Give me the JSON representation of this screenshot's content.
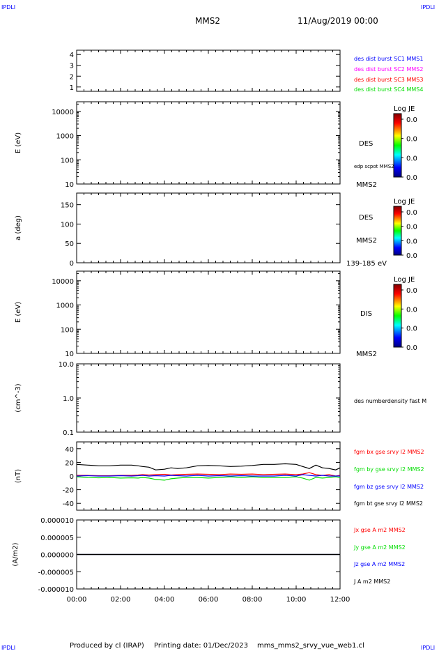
{
  "header": {
    "corner_label": "IPDLI",
    "spacecraft": "MMS2",
    "datetime": "11/Aug/2019 00:00"
  },
  "footer": {
    "produced_by": "Produced by cl (IRAP)",
    "printing_date": "Printing date: 01/Dec/2023",
    "filename": "mms_mms2_srvy_vue_web1.cl"
  },
  "colors": {
    "blue": "#0000ff",
    "magenta": "#ff00ff",
    "red": "#ff0000",
    "green": "#00dd00",
    "black": "#000000"
  },
  "time_axis": {
    "ticks": [
      "00:00",
      "02:00",
      "04:00",
      "06:00",
      "08:00",
      "10:00",
      "12:00"
    ]
  },
  "chart_data": [
    {
      "type": "line",
      "panel": "burst-availability",
      "ylabel": "",
      "ylim": [
        0.6,
        4.4
      ],
      "yticks": [
        "1",
        "2",
        "3",
        "4"
      ],
      "legend": [
        {
          "text": "des dist burst SC1 MMS1",
          "color": "#0000ff"
        },
        {
          "text": "des dist burst SC2 MMS2",
          "color": "#ff00ff"
        },
        {
          "text": "des dist burst SC3 MMS3",
          "color": "#ff0000"
        },
        {
          "text": "des dist burst SC4 MMS4",
          "color": "#00dd00"
        }
      ],
      "series": []
    },
    {
      "type": "heatmap",
      "panel": "des-energy",
      "ylabel": "E (eV)",
      "yscale": "log",
      "ylim": [
        10,
        25000
      ],
      "yticks": [
        "10",
        "100",
        "1000",
        "10000"
      ],
      "right_labels": [
        "DES",
        "edp scpot MMS2",
        "MMS2"
      ],
      "colorbar": {
        "title": "Log JE",
        "ticks": [
          "0.0",
          "0.0",
          "0.0",
          "0.0"
        ]
      }
    },
    {
      "type": "heatmap",
      "panel": "des-pitch-angle",
      "ylabel": "a (deg)",
      "ylim": [
        0,
        180
      ],
      "yticks": [
        "0",
        "50",
        "100",
        "150"
      ],
      "right_labels": [
        "DES",
        "MMS2",
        "139-185 eV"
      ],
      "colorbar": {
        "title": "Log JE",
        "ticks": [
          "0.0",
          "0.0",
          "0.0",
          "0.0"
        ]
      }
    },
    {
      "type": "heatmap",
      "panel": "dis-energy",
      "ylabel": "E (eV)",
      "yscale": "log",
      "ylim": [
        10,
        25000
      ],
      "yticks": [
        "10",
        "100",
        "1000",
        "10000"
      ],
      "right_labels": [
        "DIS",
        "MMS2"
      ],
      "colorbar": {
        "title": "Log JE",
        "ticks": [
          "0.0",
          "0.0",
          "0.0",
          "0.0"
        ]
      }
    },
    {
      "type": "line",
      "panel": "density",
      "ylabel": "(cm^-3)",
      "yscale": "log",
      "ylim": [
        0.1,
        10.0
      ],
      "yticks": [
        "0.1",
        "1.0",
        "10.0"
      ],
      "legend": [
        {
          "text": "des numberdensity fast M",
          "color": "#000000"
        }
      ],
      "series": []
    },
    {
      "type": "line",
      "panel": "magnetic-field",
      "ylabel": "(nT)",
      "ylim": [
        -50,
        50
      ],
      "yticks": [
        "-40",
        "-20",
        "0",
        "20",
        "40"
      ],
      "x": [
        0,
        0.5,
        1,
        1.5,
        2,
        2.5,
        2.8,
        3,
        3.3,
        3.6,
        4,
        4.3,
        4.6,
        5,
        5.5,
        6,
        6.5,
        7,
        7.5,
        8,
        8.5,
        9,
        9.5,
        10,
        10.3,
        10.6,
        10.9,
        11.2,
        11.5,
        11.8,
        12
      ],
      "series": [
        {
          "name": "fgm bx gse srvy l2 MMS2",
          "color": "#ff0000",
          "values": [
            1,
            1,
            0.5,
            0.5,
            1,
            1,
            1.5,
            2,
            1.5,
            2,
            2.5,
            1.5,
            2,
            2.5,
            3,
            2.5,
            2,
            3,
            2.5,
            3,
            2,
            2.5,
            3,
            2,
            3,
            5,
            2,
            1,
            2,
            0,
            1
          ]
        },
        {
          "name": "fgm by gse srvy l2 MMS2",
          "color": "#00dd00",
          "values": [
            -1,
            -2,
            -2.5,
            -2,
            -3,
            -2.5,
            -3,
            -2,
            -3,
            -5,
            -6,
            -4,
            -3,
            -2,
            -2,
            -3,
            -2,
            -1,
            -2,
            -1,
            -2,
            -2,
            -2,
            -1,
            -3,
            -6,
            -2,
            -3,
            -2,
            -1,
            -2
          ]
        },
        {
          "name": "fgm bz gse srvy l2 MMS2",
          "color": "#0000ff",
          "values": [
            0,
            0.5,
            0,
            0,
            0.5,
            0,
            0.5,
            1,
            0,
            0.5,
            0,
            1,
            0.5,
            0,
            1,
            0,
            0.5,
            0,
            0.5,
            0,
            0,
            0,
            1,
            0,
            2,
            1,
            0,
            1,
            0,
            0,
            0
          ]
        },
        {
          "name": "fgm bt gse srvy l2 MMS2",
          "color": "#000000",
          "values": [
            17,
            16,
            15,
            15,
            16,
            16,
            15,
            14,
            13,
            9,
            10,
            12,
            11,
            12,
            15,
            15.5,
            15,
            14,
            14.5,
            15.5,
            17,
            17,
            18,
            17,
            14,
            11,
            16,
            12,
            11,
            9,
            12
          ]
        }
      ]
    },
    {
      "type": "line",
      "panel": "current-density",
      "ylabel": "(A/m2)",
      "ylim": [
        -1e-05,
        1e-05
      ],
      "yticks": [
        "-0.000010",
        "-0.000005",
        "0.000000",
        "0.000005",
        "0.000010"
      ],
      "x": [
        0,
        3,
        3.5,
        4,
        6,
        8,
        9,
        10,
        10.5,
        11,
        12
      ],
      "series": [
        {
          "name": "Jx gse A m2 MMS2",
          "color": "#ff0000",
          "values": [
            0,
            0,
            0,
            0,
            0,
            0,
            0,
            0,
            0,
            0,
            0
          ]
        },
        {
          "name": "Jy gse A m2 MMS2",
          "color": "#00dd00",
          "values": [
            0,
            0,
            0,
            0,
            0,
            0,
            0,
            0,
            0,
            0,
            0
          ]
        },
        {
          "name": "Jz gse A m2 MMS2",
          "color": "#0000ff",
          "values": [
            0,
            0,
            0,
            0,
            0,
            0,
            0,
            0,
            0,
            0,
            0
          ]
        },
        {
          "name": "J A m2 MMS2",
          "color": "#000000",
          "values": [
            0,
            0,
            0,
            0,
            0,
            0,
            0,
            0,
            0,
            0,
            0
          ]
        }
      ]
    }
  ]
}
